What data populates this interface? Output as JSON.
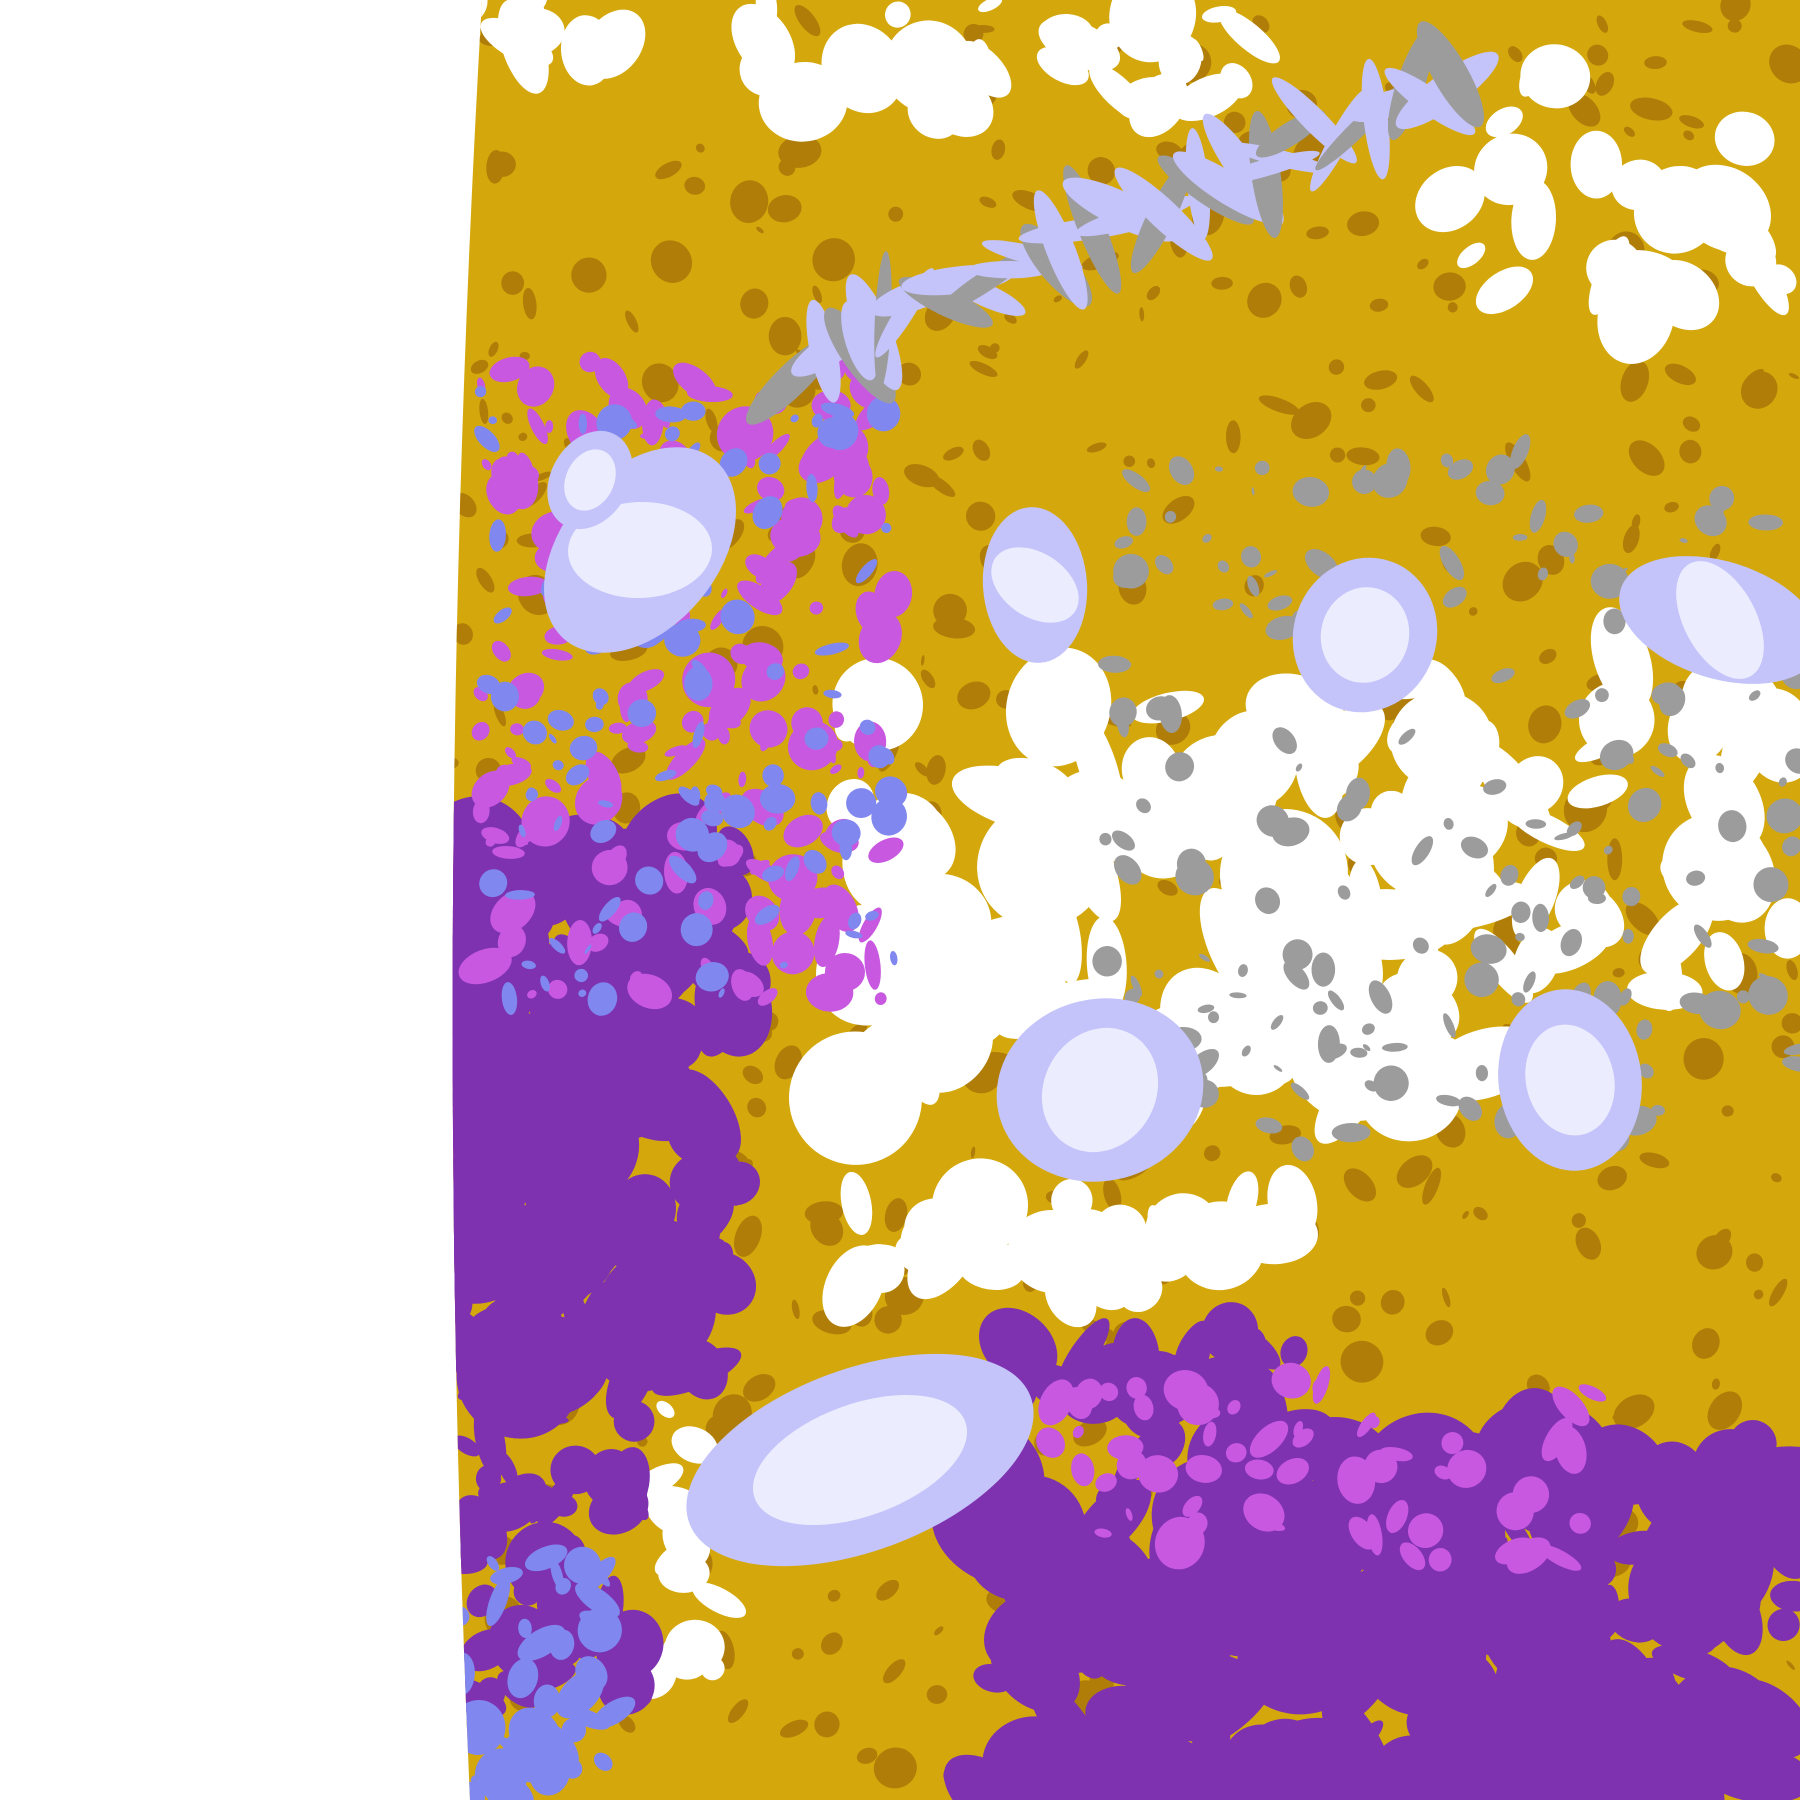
{
  "image": {
    "kind": "false-color satellite cloud classification imagery",
    "background_color": "#ffffff",
    "palette": {
      "gold": "#d4a80c",
      "dark_gold": "#b07e08",
      "purple": "#7e32b0",
      "magenta": "#c858e0",
      "periwinkle": "#8088f0",
      "lavender": "#c4c4fa",
      "pale_lavender": "#ececff",
      "gray": "#9c9c9c",
      "clear": "#ffffff"
    }
  }
}
